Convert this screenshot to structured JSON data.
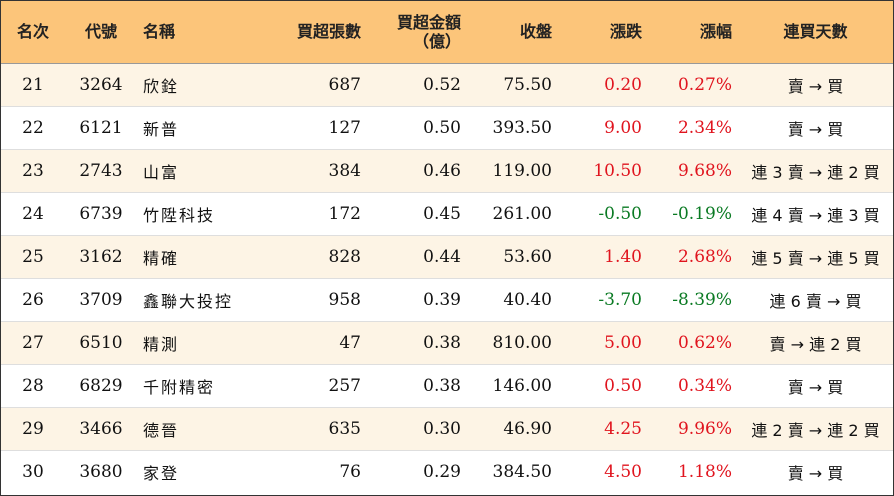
{
  "headers": {
    "rank": "名次",
    "code": "代號",
    "name": "名稱",
    "net_lots": "買超張數",
    "net_amount": "買超金額",
    "net_amount_unit": "（億）",
    "close": "收盤",
    "change": "漲跌",
    "pct": "漲幅",
    "streak": "連買天數"
  },
  "colors": {
    "header_bg": "#fcc57a",
    "row_odd_bg": "#fdf4e5",
    "up": "#e0141e",
    "down": "#0a7a23"
  },
  "rows": [
    {
      "rank": "21",
      "code": "3264",
      "name": "欣銓",
      "net_lots": "687",
      "net_amount": "0.52",
      "close": "75.50",
      "change": "0.20",
      "pct": "0.27%",
      "direction": "up",
      "streak": "賣 → 買"
    },
    {
      "rank": "22",
      "code": "6121",
      "name": "新普",
      "net_lots": "127",
      "net_amount": "0.50",
      "close": "393.50",
      "change": "9.00",
      "pct": "2.34%",
      "direction": "up",
      "streak": "賣 → 買"
    },
    {
      "rank": "23",
      "code": "2743",
      "name": "山富",
      "net_lots": "384",
      "net_amount": "0.46",
      "close": "119.00",
      "change": "10.50",
      "pct": "9.68%",
      "direction": "up",
      "streak": "連 3 賣 → 連 2 買"
    },
    {
      "rank": "24",
      "code": "6739",
      "name": "竹陞科技",
      "net_lots": "172",
      "net_amount": "0.45",
      "close": "261.00",
      "change": "-0.50",
      "pct": "-0.19%",
      "direction": "down",
      "streak": "連 4 賣 → 連 3 買"
    },
    {
      "rank": "25",
      "code": "3162",
      "name": "精確",
      "net_lots": "828",
      "net_amount": "0.44",
      "close": "53.60",
      "change": "1.40",
      "pct": "2.68%",
      "direction": "up",
      "streak": "連 5 賣 → 連 5 買"
    },
    {
      "rank": "26",
      "code": "3709",
      "name": "鑫聯大投控",
      "net_lots": "958",
      "net_amount": "0.39",
      "close": "40.40",
      "change": "-3.70",
      "pct": "-8.39%",
      "direction": "down",
      "streak": "連 6 賣 → 買"
    },
    {
      "rank": "27",
      "code": "6510",
      "name": "精測",
      "net_lots": "47",
      "net_amount": "0.38",
      "close": "810.00",
      "change": "5.00",
      "pct": "0.62%",
      "direction": "up",
      "streak": "賣 → 連 2 買"
    },
    {
      "rank": "28",
      "code": "6829",
      "name": "千附精密",
      "net_lots": "257",
      "net_amount": "0.38",
      "close": "146.00",
      "change": "0.50",
      "pct": "0.34%",
      "direction": "up",
      "streak": "賣 → 買"
    },
    {
      "rank": "29",
      "code": "3466",
      "name": "德晉",
      "net_lots": "635",
      "net_amount": "0.30",
      "close": "46.90",
      "change": "4.25",
      "pct": "9.96%",
      "direction": "up",
      "streak": "連 2 賣 → 連 2 買"
    },
    {
      "rank": "30",
      "code": "3680",
      "name": "家登",
      "net_lots": "76",
      "net_amount": "0.29",
      "close": "384.50",
      "change": "4.50",
      "pct": "1.18%",
      "direction": "up",
      "streak": "賣 → 買"
    }
  ]
}
